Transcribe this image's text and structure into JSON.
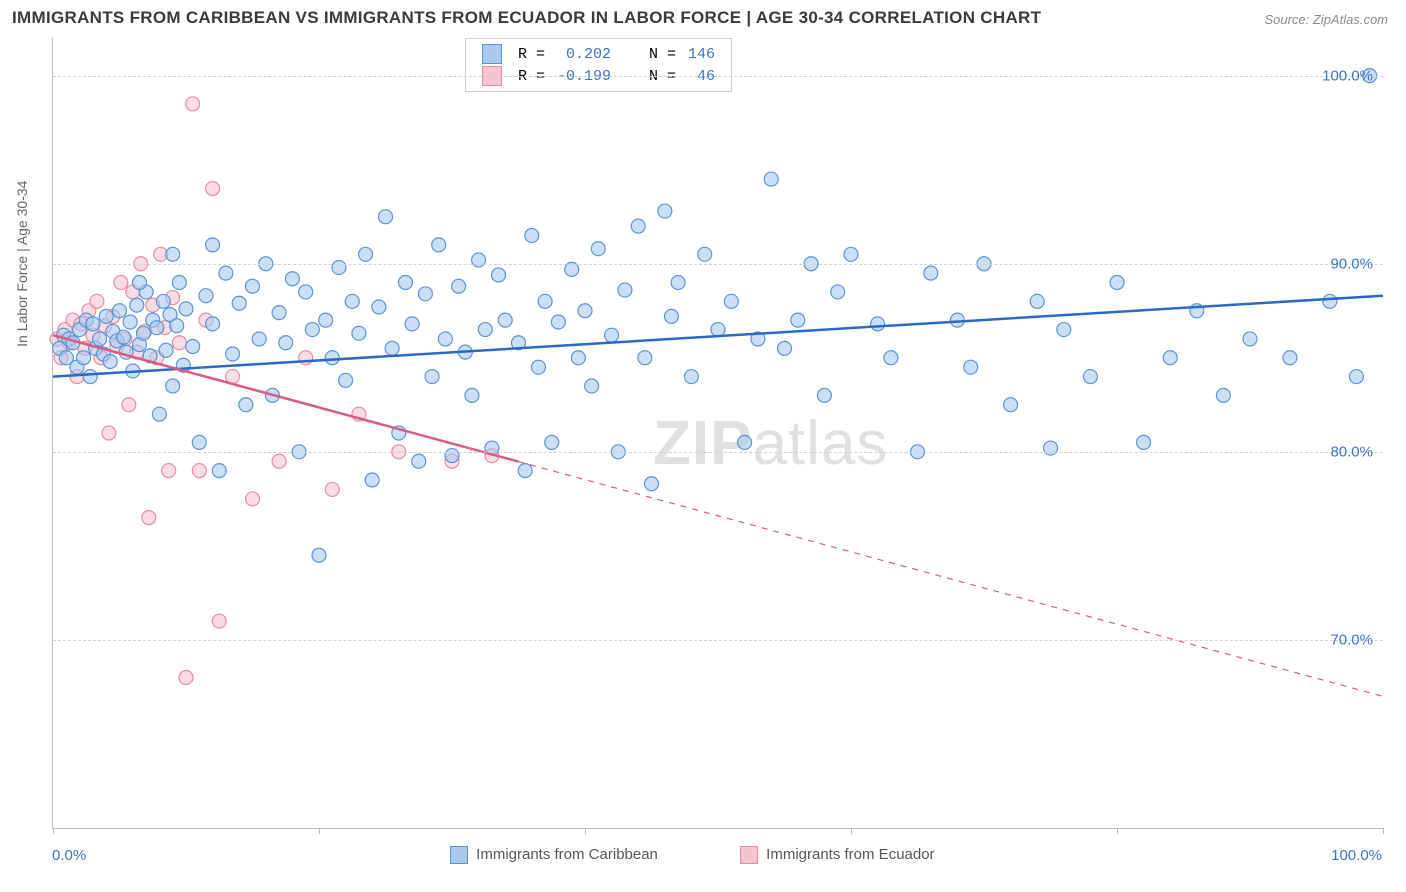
{
  "title": "IMMIGRANTS FROM CARIBBEAN VS IMMIGRANTS FROM ECUADOR IN LABOR FORCE | AGE 30-34 CORRELATION CHART",
  "source": "Source: ZipAtlas.com",
  "ylabel": "In Labor Force | Age 30-34",
  "watermark_a": "ZIP",
  "watermark_b": "atlas",
  "chart": {
    "type": "scatter",
    "xlim": [
      0,
      100
    ],
    "ylim": [
      60,
      102
    ],
    "x_ticks": [
      0,
      20,
      40,
      60,
      80,
      100
    ],
    "x_tick_labels": [
      "0.0%",
      "",
      "",
      "",
      "",
      "100.0%"
    ],
    "y_grid": [
      70,
      80,
      90,
      100
    ],
    "y_tick_labels": [
      "70.0%",
      "80.0%",
      "90.0%",
      "100.0%"
    ],
    "background": "#ffffff",
    "grid_color": "#d0d0d0",
    "axis_color": "#bbbbbb",
    "label_color": "#3b74c4",
    "marker_radius": 7,
    "marker_stroke_width": 1.2,
    "trend_line_width": 2.5
  },
  "series": [
    {
      "name": "Immigrants from Caribbean",
      "fill": "#a9c8ec",
      "stroke": "#5b94d6",
      "line_color": "#2b68c4",
      "R": "0.202",
      "N": "146",
      "trend": {
        "x1": 0,
        "y1": 84.0,
        "x2": 100,
        "y2": 88.3,
        "dashed": false
      },
      "points": [
        [
          0.5,
          85.5
        ],
        [
          0.8,
          86.2
        ],
        [
          1.0,
          85.0
        ],
        [
          1.2,
          86.0
        ],
        [
          1.5,
          85.8
        ],
        [
          1.8,
          84.5
        ],
        [
          2.0,
          86.5
        ],
        [
          2.3,
          85.0
        ],
        [
          2.5,
          87.0
        ],
        [
          2.8,
          84.0
        ],
        [
          3.0,
          86.8
        ],
        [
          3.2,
          85.5
        ],
        [
          3.5,
          86.0
        ],
        [
          3.8,
          85.2
        ],
        [
          4.0,
          87.2
        ],
        [
          4.3,
          84.8
        ],
        [
          4.5,
          86.4
        ],
        [
          4.8,
          85.9
        ],
        [
          5.0,
          87.5
        ],
        [
          5.3,
          86.1
        ],
        [
          5.5,
          85.3
        ],
        [
          5.8,
          86.9
        ],
        [
          6.0,
          84.3
        ],
        [
          6.3,
          87.8
        ],
        [
          6.5,
          85.7
        ],
        [
          6.8,
          86.3
        ],
        [
          7.0,
          88.5
        ],
        [
          7.3,
          85.1
        ],
        [
          7.5,
          87.0
        ],
        [
          7.8,
          86.6
        ],
        [
          8.0,
          82.0
        ],
        [
          8.3,
          88.0
        ],
        [
          8.5,
          85.4
        ],
        [
          8.8,
          87.3
        ],
        [
          9.0,
          83.5
        ],
        [
          9.3,
          86.7
        ],
        [
          9.5,
          89.0
        ],
        [
          9.8,
          84.6
        ],
        [
          10.0,
          87.6
        ],
        [
          10.5,
          85.6
        ],
        [
          11.0,
          80.5
        ],
        [
          11.5,
          88.3
        ],
        [
          12.0,
          86.8
        ],
        [
          12.5,
          79.0
        ],
        [
          13.0,
          89.5
        ],
        [
          13.5,
          85.2
        ],
        [
          14.0,
          87.9
        ],
        [
          14.5,
          82.5
        ],
        [
          15.0,
          88.8
        ],
        [
          15.5,
          86.0
        ],
        [
          16.0,
          90.0
        ],
        [
          16.5,
          83.0
        ],
        [
          17.0,
          87.4
        ],
        [
          17.5,
          85.8
        ],
        [
          18.0,
          89.2
        ],
        [
          18.5,
          80.0
        ],
        [
          19.0,
          88.5
        ],
        [
          19.5,
          86.5
        ],
        [
          20.0,
          74.5
        ],
        [
          20.5,
          87.0
        ],
        [
          21.0,
          85.0
        ],
        [
          21.5,
          89.8
        ],
        [
          22.0,
          83.8
        ],
        [
          22.5,
          88.0
        ],
        [
          23.0,
          86.3
        ],
        [
          23.5,
          90.5
        ],
        [
          24.0,
          78.5
        ],
        [
          24.5,
          87.7
        ],
        [
          25.0,
          92.5
        ],
        [
          25.5,
          85.5
        ],
        [
          26.0,
          81.0
        ],
        [
          26.5,
          89.0
        ],
        [
          27.0,
          86.8
        ],
        [
          27.5,
          79.5
        ],
        [
          28.0,
          88.4
        ],
        [
          28.5,
          84.0
        ],
        [
          29.0,
          91.0
        ],
        [
          29.5,
          86.0
        ],
        [
          30.0,
          79.8
        ],
        [
          30.5,
          88.8
        ],
        [
          31.0,
          85.3
        ],
        [
          31.5,
          83.0
        ],
        [
          32.0,
          90.2
        ],
        [
          32.5,
          86.5
        ],
        [
          33.0,
          80.2
        ],
        [
          33.5,
          89.4
        ],
        [
          34.0,
          87.0
        ],
        [
          35.0,
          85.8
        ],
        [
          35.5,
          79.0
        ],
        [
          36.0,
          91.5
        ],
        [
          36.5,
          84.5
        ],
        [
          37.0,
          88.0
        ],
        [
          37.5,
          80.5
        ],
        [
          38.0,
          86.9
        ],
        [
          39.0,
          89.7
        ],
        [
          39.5,
          85.0
        ],
        [
          40.0,
          87.5
        ],
        [
          40.5,
          83.5
        ],
        [
          41.0,
          90.8
        ],
        [
          42.0,
          86.2
        ],
        [
          42.5,
          80.0
        ],
        [
          43.0,
          88.6
        ],
        [
          44.0,
          92.0
        ],
        [
          44.5,
          85.0
        ],
        [
          45.0,
          78.3
        ],
        [
          46.0,
          92.8
        ],
        [
          46.5,
          87.2
        ],
        [
          47.0,
          89.0
        ],
        [
          48.0,
          84.0
        ],
        [
          49.0,
          90.5
        ],
        [
          50.0,
          86.5
        ],
        [
          51.0,
          88.0
        ],
        [
          52.0,
          80.5
        ],
        [
          53.0,
          86.0
        ],
        [
          54.0,
          94.5
        ],
        [
          55.0,
          85.5
        ],
        [
          56.0,
          87.0
        ],
        [
          57.0,
          90.0
        ],
        [
          58.0,
          83.0
        ],
        [
          59.0,
          88.5
        ],
        [
          60.0,
          90.5
        ],
        [
          62.0,
          86.8
        ],
        [
          63.0,
          85.0
        ],
        [
          65.0,
          80.0
        ],
        [
          66.0,
          89.5
        ],
        [
          68.0,
          87.0
        ],
        [
          69.0,
          84.5
        ],
        [
          70.0,
          90.0
        ],
        [
          72.0,
          82.5
        ],
        [
          74.0,
          88.0
        ],
        [
          75.0,
          80.2
        ],
        [
          76.0,
          86.5
        ],
        [
          78.0,
          84.0
        ],
        [
          80.0,
          89.0
        ],
        [
          82.0,
          80.5
        ],
        [
          84.0,
          85.0
        ],
        [
          86.0,
          87.5
        ],
        [
          88.0,
          83.0
        ],
        [
          90.0,
          86.0
        ],
        [
          93.0,
          85.0
        ],
        [
          96.0,
          88.0
        ],
        [
          98.0,
          84.0
        ],
        [
          99.0,
          100.0
        ],
        [
          6.5,
          89.0
        ],
        [
          9.0,
          90.5
        ],
        [
          12.0,
          91.0
        ]
      ]
    },
    {
      "name": "Immigrants from Ecuador",
      "fill": "#f5c4d1",
      "stroke": "#e78aa5",
      "line_color": "#d85b82",
      "R": "-0.199",
      "N": "46",
      "trend": {
        "x1": 0,
        "y1": 86.2,
        "x2": 100,
        "y2": 67.0,
        "dashed_after": 35
      },
      "points": [
        [
          0.3,
          86.0
        ],
        [
          0.6,
          85.0
        ],
        [
          0.9,
          86.5
        ],
        [
          1.2,
          85.8
        ],
        [
          1.5,
          87.0
        ],
        [
          1.8,
          84.0
        ],
        [
          2.1,
          86.8
        ],
        [
          2.4,
          85.5
        ],
        [
          2.7,
          87.5
        ],
        [
          3.0,
          86.2
        ],
        [
          3.3,
          88.0
        ],
        [
          3.6,
          85.0
        ],
        [
          3.9,
          86.7
        ],
        [
          4.2,
          81.0
        ],
        [
          4.5,
          87.2
        ],
        [
          4.8,
          85.6
        ],
        [
          5.1,
          89.0
        ],
        [
          5.4,
          86.0
        ],
        [
          5.7,
          82.5
        ],
        [
          6.0,
          88.5
        ],
        [
          6.3,
          85.3
        ],
        [
          6.6,
          90.0
        ],
        [
          6.9,
          86.4
        ],
        [
          7.2,
          76.5
        ],
        [
          7.5,
          87.8
        ],
        [
          7.8,
          85.0
        ],
        [
          8.1,
          90.5
        ],
        [
          8.4,
          86.6
        ],
        [
          8.7,
          79.0
        ],
        [
          9.0,
          88.2
        ],
        [
          9.5,
          85.8
        ],
        [
          10.0,
          68.0
        ],
        [
          10.5,
          98.5
        ],
        [
          11.0,
          79.0
        ],
        [
          11.5,
          87.0
        ],
        [
          12.0,
          94.0
        ],
        [
          12.5,
          71.0
        ],
        [
          13.5,
          84.0
        ],
        [
          15.0,
          77.5
        ],
        [
          17.0,
          79.5
        ],
        [
          19.0,
          85.0
        ],
        [
          21.0,
          78.0
        ],
        [
          23.0,
          82.0
        ],
        [
          26.0,
          80.0
        ],
        [
          30.0,
          79.5
        ],
        [
          33.0,
          79.8
        ]
      ]
    }
  ],
  "legend_top": {
    "rows": [
      {
        "R_label": "R =",
        "N_label": "N ="
      },
      {
        "R_label": "R =",
        "N_label": "N ="
      }
    ]
  },
  "legend_bottom": {
    "items": [
      "Immigrants from Caribbean",
      "Immigrants from Ecuador"
    ]
  }
}
